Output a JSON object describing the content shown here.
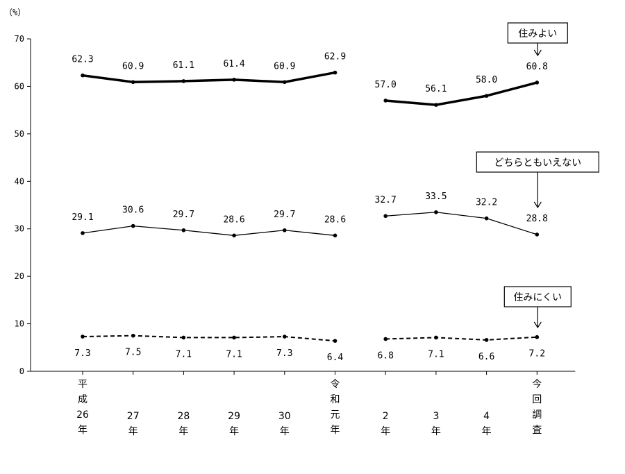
{
  "chart_data": {
    "type": "line",
    "unit_label": "（%）",
    "ylim": [
      0,
      70
    ],
    "yticks": [
      0,
      10,
      20,
      30,
      40,
      50,
      60,
      70
    ],
    "categories": [
      [
        "平",
        "成",
        "26",
        "年"
      ],
      [
        "27",
        "年"
      ],
      [
        "28",
        "年"
      ],
      [
        "29",
        "年"
      ],
      [
        "30",
        "年"
      ],
      [
        "令",
        "和",
        "元",
        "年"
      ],
      [
        "2",
        "年"
      ],
      [
        "3",
        "年"
      ],
      [
        "4",
        "年"
      ],
      [
        "今",
        "回",
        "調",
        "査"
      ]
    ],
    "segments": [
      [
        0,
        5
      ],
      [
        6,
        9
      ]
    ],
    "series": [
      {
        "name": "住みよい",
        "style": "bold",
        "values": [
          62.3,
          60.9,
          61.1,
          61.4,
          60.9,
          62.9,
          57.0,
          56.1,
          58.0,
          60.8
        ],
        "labels": [
          "62.3",
          "60.9",
          "61.1",
          "61.4",
          "60.9",
          "62.9",
          "57.0",
          "56.1",
          "58.0",
          "60.8"
        ]
      },
      {
        "name": "どちらともいえない",
        "style": "thin",
        "values": [
          29.1,
          30.6,
          29.7,
          28.6,
          29.7,
          28.6,
          32.7,
          33.5,
          32.2,
          28.8
        ],
        "labels": [
          "29.1",
          "30.6",
          "29.7",
          "28.6",
          "29.7",
          "28.6",
          "32.7",
          "33.5",
          "32.2",
          "28.8"
        ]
      },
      {
        "name": "住みにくい",
        "style": "dashed",
        "values": [
          7.3,
          7.5,
          7.1,
          7.1,
          7.3,
          6.4,
          6.8,
          7.1,
          6.6,
          7.2
        ],
        "labels": [
          "7.3",
          "7.5",
          "7.1",
          "7.1",
          "7.3",
          "6.4",
          "6.8",
          "7.1",
          "6.6",
          "7.2"
        ]
      }
    ]
  }
}
